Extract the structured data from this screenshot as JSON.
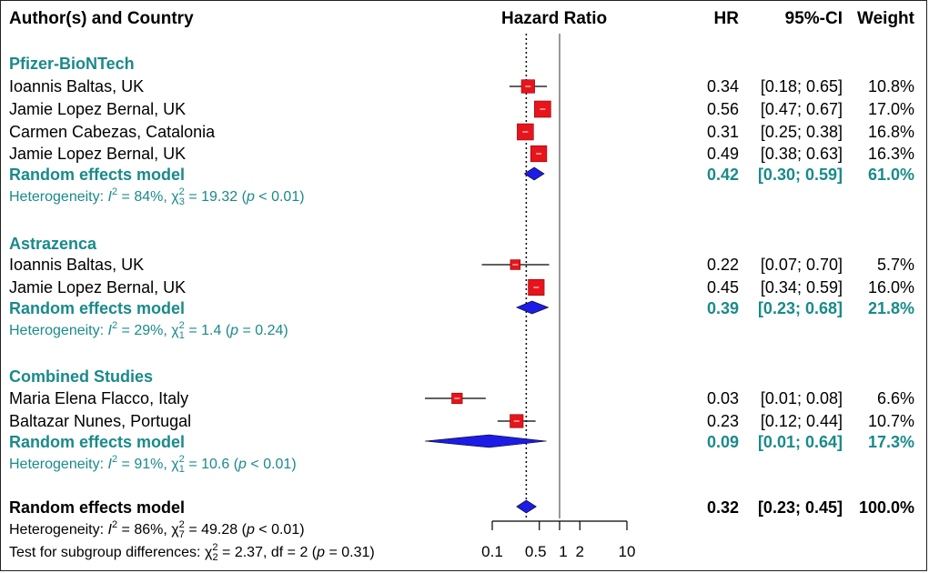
{
  "headers": {
    "author": "Author(s) and Country",
    "hazard": "Hazard Ratio",
    "hr": "HR",
    "ci": "95%-CI",
    "weight": "Weight"
  },
  "colors": {
    "box": "#e8141c",
    "diamond": "#1c1ce6",
    "accent": "#1a8a8a"
  },
  "chart_data": {
    "type": "forest",
    "xscale": "log",
    "null_value": 1,
    "xticks": [
      0.1,
      0.5,
      1,
      2,
      10
    ],
    "xtick_labels": [
      "0.1",
      "0.5",
      "1",
      "2",
      "10"
    ],
    "overall_line": 0.32,
    "groups": [
      {
        "name": "Pfizer-BioNTech",
        "studies": [
          {
            "label": "Ioannis Baltas,  UK",
            "hr": 0.34,
            "lo": 0.18,
            "hi": 0.65,
            "hr_text": "0.34",
            "ci_text": "[0.18; 0.65]",
            "weight_text": "10.8%",
            "weight": 10.8
          },
          {
            "label": "Jamie Lopez Bernal,  UK",
            "hr": 0.56,
            "lo": 0.47,
            "hi": 0.67,
            "hr_text": "0.56",
            "ci_text": "[0.47; 0.67]",
            "weight_text": "17.0%",
            "weight": 17.0
          },
          {
            "label": "Carmen Cabezas,  Catalonia",
            "hr": 0.31,
            "lo": 0.25,
            "hi": 0.38,
            "hr_text": "0.31",
            "ci_text": "[0.25; 0.38]",
            "weight_text": "16.8%",
            "weight": 16.8
          },
          {
            "label": "Jamie Lopez Bernal,  UK",
            "hr": 0.49,
            "lo": 0.38,
            "hi": 0.63,
            "hr_text": "0.49",
            "ci_text": "[0.38; 0.63]",
            "weight_text": "16.3%",
            "weight": 16.3
          }
        ],
        "model": {
          "label": "Random effects model",
          "hr": 0.42,
          "lo": 0.3,
          "hi": 0.59,
          "hr_text": "0.42",
          "ci_text": "[0.30; 0.59]",
          "weight_text": "61.0%"
        },
        "het": {
          "prefix": "Heterogeneity: ",
          "i2": "84%",
          "df": "3",
          "chi": "19.32",
          "p": "< 0.01"
        }
      },
      {
        "name": "Astrazenca",
        "studies": [
          {
            "label": "Ioannis Baltas,  UK",
            "hr": 0.22,
            "lo": 0.07,
            "hi": 0.7,
            "hr_text": "0.22",
            "ci_text": "[0.07; 0.70]",
            "weight_text": "5.7%",
            "weight": 5.7
          },
          {
            "label": "Jamie Lopez Bernal,  UK",
            "hr": 0.45,
            "lo": 0.34,
            "hi": 0.59,
            "hr_text": "0.45",
            "ci_text": "[0.34; 0.59]",
            "weight_text": "16.0%",
            "weight": 16.0
          }
        ],
        "model": {
          "label": "Random effects model",
          "hr": 0.39,
          "lo": 0.23,
          "hi": 0.68,
          "hr_text": "0.39",
          "ci_text": "[0.23; 0.68]",
          "weight_text": "21.8%"
        },
        "het": {
          "prefix": "Heterogeneity: ",
          "i2": "29%",
          "df": "1",
          "chi": "1.4",
          "p": "= 0.24"
        }
      },
      {
        "name": "Combined Studies",
        "studies": [
          {
            "label": "Maria Elena Flacco,  Italy",
            "hr": 0.03,
            "lo": 0.01,
            "hi": 0.08,
            "hr_text": "0.03",
            "ci_text": "[0.01; 0.08]",
            "weight_text": "6.6%",
            "weight": 6.6
          },
          {
            "label": "Baltazar Nunes,  Portugal",
            "hr": 0.23,
            "lo": 0.12,
            "hi": 0.44,
            "hr_text": "0.23",
            "ci_text": "[0.12; 0.44]",
            "weight_text": "10.7%",
            "weight": 10.7
          }
        ],
        "model": {
          "label": "Random effects model",
          "hr": 0.09,
          "lo": 0.01,
          "hi": 0.64,
          "hr_text": "0.09",
          "ci_text": "[0.01; 0.64]",
          "weight_text": "17.3%"
        },
        "het": {
          "prefix": "Heterogeneity: ",
          "i2": "91%",
          "df": "1",
          "chi": "10.6",
          "p": "< 0.01"
        }
      }
    ],
    "overall": {
      "label": "Random effects model",
      "hr": 0.32,
      "lo": 0.23,
      "hi": 0.45,
      "hr_text": "0.32",
      "ci_text": "[0.23; 0.45]",
      "weight_text": "100.0%"
    },
    "overall_het": {
      "prefix": "Heterogeneity: ",
      "i2": "86%",
      "df": "7",
      "chi": "49.28",
      "p": "< 0.01"
    },
    "subgroup_test": {
      "prefix": "Test for subgroup differences: ",
      "df_sub": "2",
      "chi": "2.37",
      "df": "2",
      "p": "= 0.31"
    }
  }
}
